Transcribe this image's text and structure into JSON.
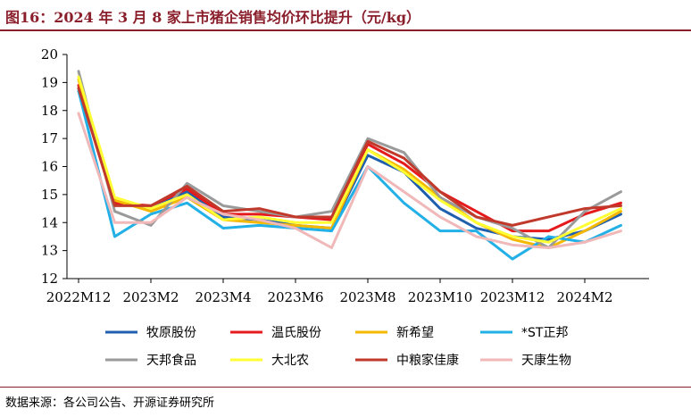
{
  "header": {
    "title": "图16：2024 年 3 月 8 家上市猪企销售均价环比提升（元/kg）"
  },
  "footer": {
    "source": "数据来源：各公司公告、开源证券研究所"
  },
  "colors": {
    "title": "#8a1f2b",
    "axis": "#000000"
  },
  "chart_data": {
    "type": "line",
    "title": "2024 年 3 月 8 家上市猪企销售均价环比提升（元/kg）",
    "ylim": [
      12,
      20
    ],
    "y_ticks": [
      "12",
      "13",
      "14",
      "15",
      "16",
      "17",
      "18",
      "19",
      "20"
    ],
    "x": [
      "2022M12",
      "2023M1",
      "2023M2",
      "2023M3",
      "2023M4",
      "2023M5",
      "2023M6",
      "2023M7",
      "2023M8",
      "2023M9",
      "2023M10",
      "2023M11",
      "2023M12",
      "2024M1",
      "2024M2",
      "2024M3"
    ],
    "x_tick_labels": [
      "2022M12",
      "2023M2",
      "2023M4",
      "2023M6",
      "2023M8",
      "2023M10",
      "2023M12",
      "2024M2"
    ],
    "legend_position": "bottom",
    "grid": false,
    "series": [
      {
        "name": "牧原股份",
        "color": "#1f5fad",
        "values": [
          18.8,
          14.7,
          14.5,
          15.1,
          14.2,
          14.1,
          13.9,
          13.8,
          16.4,
          15.8,
          14.5,
          13.8,
          13.5,
          13.4,
          13.7,
          14.3
        ]
      },
      {
        "name": "温氏股份",
        "color": "#e41a1c",
        "values": [
          18.9,
          14.7,
          14.6,
          15.2,
          14.3,
          14.3,
          14.2,
          14.1,
          16.8,
          16.1,
          15.1,
          14.4,
          13.7,
          13.7,
          14.3,
          14.7
        ]
      },
      {
        "name": "新希望",
        "color": "#f5b800",
        "values": [
          19.1,
          14.8,
          14.4,
          14.9,
          14.1,
          14.0,
          13.9,
          13.8,
          16.6,
          15.9,
          14.9,
          14.0,
          13.4,
          13.1,
          13.7,
          14.4
        ]
      },
      {
        "name": "*ST正邦",
        "color": "#22b0e6",
        "values": [
          18.7,
          13.5,
          14.3,
          14.7,
          13.8,
          13.9,
          13.8,
          13.7,
          16.0,
          14.7,
          13.7,
          13.7,
          12.7,
          13.5,
          13.3,
          13.9
        ]
      },
      {
        "name": "天邦食品",
        "color": "#9a9a9a",
        "values": [
          19.4,
          14.4,
          13.9,
          15.4,
          14.6,
          14.4,
          14.2,
          14.4,
          17.0,
          16.5,
          14.9,
          14.2,
          13.8,
          13.1,
          14.4,
          15.1
        ]
      },
      {
        "name": "大北农",
        "color": "#ffff33",
        "values": [
          19.2,
          14.9,
          14.5,
          15.0,
          14.1,
          14.2,
          14.0,
          14.0,
          16.6,
          15.8,
          14.8,
          14.0,
          13.5,
          13.3,
          13.9,
          14.5
        ]
      },
      {
        "name": "中粮家佳康",
        "color": "#c0392b",
        "values": [
          18.8,
          14.6,
          14.6,
          15.3,
          14.4,
          14.5,
          14.2,
          14.2,
          16.9,
          16.3,
          15.1,
          14.2,
          13.9,
          14.2,
          14.5,
          14.6
        ]
      },
      {
        "name": "天康生物",
        "color": "#f0b8b8",
        "values": [
          17.9,
          14.0,
          14.0,
          14.9,
          14.3,
          14.1,
          13.8,
          13.1,
          16.0,
          15.1,
          14.2,
          13.5,
          13.2,
          13.1,
          13.3,
          13.7
        ]
      }
    ]
  }
}
